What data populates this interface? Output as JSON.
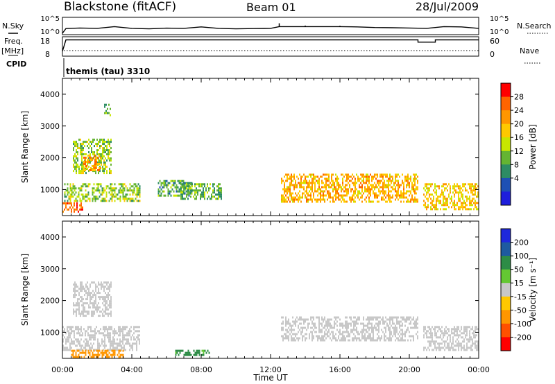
{
  "header": {
    "site": "Blackstone (fitACF)",
    "beam": "Beam 01",
    "date": "28/Jul/2009",
    "program": "themis (tau) 3310"
  },
  "panels": {
    "nsky": {
      "left_label": "N.Sky",
      "right_label": "N.Search",
      "left_ticks": [
        "10^5",
        "10^0"
      ],
      "right_ticks": [
        "10^5",
        "10^0"
      ]
    },
    "freq": {
      "left_label": "Freq.",
      "left_unit": "[MHz]",
      "left_label2": "CPID",
      "left_ticks": [
        "18",
        "8"
      ],
      "right_label": "Nave",
      "right_ticks": [
        "60",
        "0"
      ]
    }
  },
  "colorbars": {
    "power": {
      "label": "Power [dB]",
      "ticks": [
        "28",
        "24",
        "20",
        "16",
        "12",
        "8",
        "4"
      ],
      "colors": [
        "#ff0000",
        "#ff6400",
        "#ff9600",
        "#ffc800",
        "#c8e600",
        "#64b432",
        "#2d8c64",
        "#1e50b4",
        "#1e1edc"
      ]
    },
    "velocity": {
      "label": "Velocity [m s⁻¹]",
      "ticks": [
        "200",
        "100",
        "50",
        "15",
        "-15",
        "-50",
        "-100",
        "-200"
      ],
      "colors": [
        "#1e28dc",
        "#1e5aa0",
        "#2d8c46",
        "#64c832",
        "#c8c8c8",
        "#ffc800",
        "#ff9600",
        "#ff5000",
        "#ff0000"
      ]
    }
  },
  "chart_data": [
    {
      "type": "line",
      "title": "Blackstone (fitACF)",
      "ylabel": "N.Sky",
      "yscale": "log",
      "ylim": [
        1,
        100000
      ],
      "x_unit": "hours UT",
      "x": [
        0,
        0.2,
        1,
        2,
        3,
        4,
        5,
        6,
        7,
        8,
        9,
        10,
        11,
        12,
        12.5,
        13,
        14,
        15,
        16,
        17,
        18,
        19,
        20,
        21,
        22,
        23,
        24
      ],
      "series": [
        {
          "values": [
            1,
            50,
            80,
            60,
            300,
            60,
            40,
            70,
            60,
            200,
            60,
            40,
            50,
            60,
            4000,
            300,
            600,
            300,
            500,
            200,
            120,
            100,
            80,
            60,
            300,
            200,
            60
          ]
        }
      ]
    },
    {
      "type": "line",
      "ylabel": "Freq. [MHz]",
      "ylim": [
        8,
        18
      ],
      "x_unit": "hours UT",
      "x": [
        0,
        0.2,
        20.5,
        20.5,
        21.5,
        21.5,
        24
      ],
      "series": [
        {
          "values": [
            10.5,
            16.4,
            16.4,
            15.2,
            15.2,
            16.4,
            16.4
          ]
        }
      ]
    },
    {
      "type": "heatmap",
      "ylabel": "Slant Range [km]",
      "yticks": [
        "4000",
        "3000",
        "2000",
        "1000"
      ],
      "ylim": [
        180,
        4500
      ],
      "xlim": [
        0,
        24
      ],
      "colorbar": "Power [dB]",
      "regions": [
        {
          "t": [
            0,
            1.2
          ],
          "r": [
            300,
            600
          ],
          "v": 26
        },
        {
          "t": [
            0.1,
            4.5
          ],
          "r": [
            600,
            1200
          ],
          "v": 12
        },
        {
          "t": [
            0.6,
            2.8
          ],
          "r": [
            1500,
            2600
          ],
          "v": 12
        },
        {
          "t": [
            1.2,
            2.2
          ],
          "r": [
            1600,
            2100
          ],
          "v": 22
        },
        {
          "t": [
            2.4,
            2.8
          ],
          "r": [
            3300,
            3700
          ],
          "v": 9
        },
        {
          "t": [
            5.5,
            7.5
          ],
          "r": [
            800,
            1300
          ],
          "v": 8
        },
        {
          "t": [
            6.8,
            9.2
          ],
          "r": [
            700,
            1200
          ],
          "v": 9
        },
        {
          "t": [
            12.6,
            20.5
          ],
          "r": [
            600,
            1500
          ],
          "v": 20
        },
        {
          "t": [
            20.8,
            24
          ],
          "r": [
            350,
            1200
          ],
          "v": 18
        }
      ]
    },
    {
      "type": "heatmap",
      "ylabel": "Slant Range [km]",
      "yticks": [
        "4000",
        "3000",
        "2000",
        "1000"
      ],
      "ylim": [
        180,
        4500
      ],
      "xlim": [
        0,
        24
      ],
      "xlabel": "Time UT",
      "xticks": [
        "00:00",
        "04:00",
        "08:00",
        "12:00",
        "16:00",
        "20:00",
        "00:00"
      ],
      "colorbar": "Velocity [m s⁻¹]",
      "regions": [
        {
          "t": [
            0,
            4.5
          ],
          "r": [
            400,
            1200
          ],
          "v": 0
        },
        {
          "t": [
            0.6,
            2.8
          ],
          "r": [
            1500,
            2600
          ],
          "v": 0
        },
        {
          "t": [
            0.5,
            3.5
          ],
          "r": [
            220,
            450
          ],
          "v": -80
        },
        {
          "t": [
            6.5,
            8.5
          ],
          "r": [
            250,
            450
          ],
          "v": 60
        },
        {
          "t": [
            12.6,
            20.5
          ],
          "r": [
            700,
            1500
          ],
          "v": 0
        },
        {
          "t": [
            20.8,
            24
          ],
          "r": [
            400,
            1200
          ],
          "v": 0
        }
      ]
    }
  ]
}
